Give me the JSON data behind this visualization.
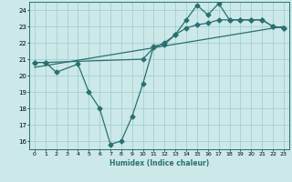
{
  "title": "",
  "xlabel": "Humidex (Indice chaleur)",
  "ylabel": "",
  "bg_color": "#cce8e8",
  "line_color": "#2a7070",
  "grid_color": "#99cccc",
  "xlim": [
    -0.5,
    23.5
  ],
  "ylim": [
    15.5,
    24.5
  ],
  "xticks": [
    0,
    1,
    2,
    3,
    4,
    5,
    6,
    7,
    8,
    9,
    10,
    11,
    12,
    13,
    14,
    15,
    16,
    17,
    18,
    19,
    20,
    21,
    22,
    23
  ],
  "yticks": [
    16,
    17,
    18,
    19,
    20,
    21,
    22,
    23,
    24
  ],
  "line1_x": [
    0,
    1,
    2,
    4,
    5,
    6,
    7,
    8,
    9,
    10,
    11,
    12,
    13,
    14,
    15,
    16,
    17,
    18,
    19,
    20,
    21,
    22,
    23
  ],
  "line1_y": [
    20.8,
    20.8,
    20.2,
    20.7,
    19.0,
    18.0,
    15.8,
    16.0,
    17.5,
    19.5,
    21.8,
    21.9,
    22.5,
    23.4,
    24.3,
    23.7,
    24.4,
    23.4,
    23.4,
    23.4,
    23.4,
    23.0,
    22.9
  ],
  "line2_x": [
    0,
    1,
    10,
    11,
    12,
    13,
    14,
    15,
    16,
    17,
    18,
    19,
    20,
    21,
    22,
    23
  ],
  "line2_y": [
    20.8,
    20.8,
    21.0,
    21.7,
    22.0,
    22.5,
    22.9,
    23.1,
    23.2,
    23.4,
    23.4,
    23.4,
    23.4,
    23.4,
    23.0,
    22.9
  ],
  "line3_x": [
    0,
    23
  ],
  "line3_y": [
    20.5,
    23.0
  ],
  "marker": "D",
  "markersize": 2.5,
  "linewidth": 0.9
}
